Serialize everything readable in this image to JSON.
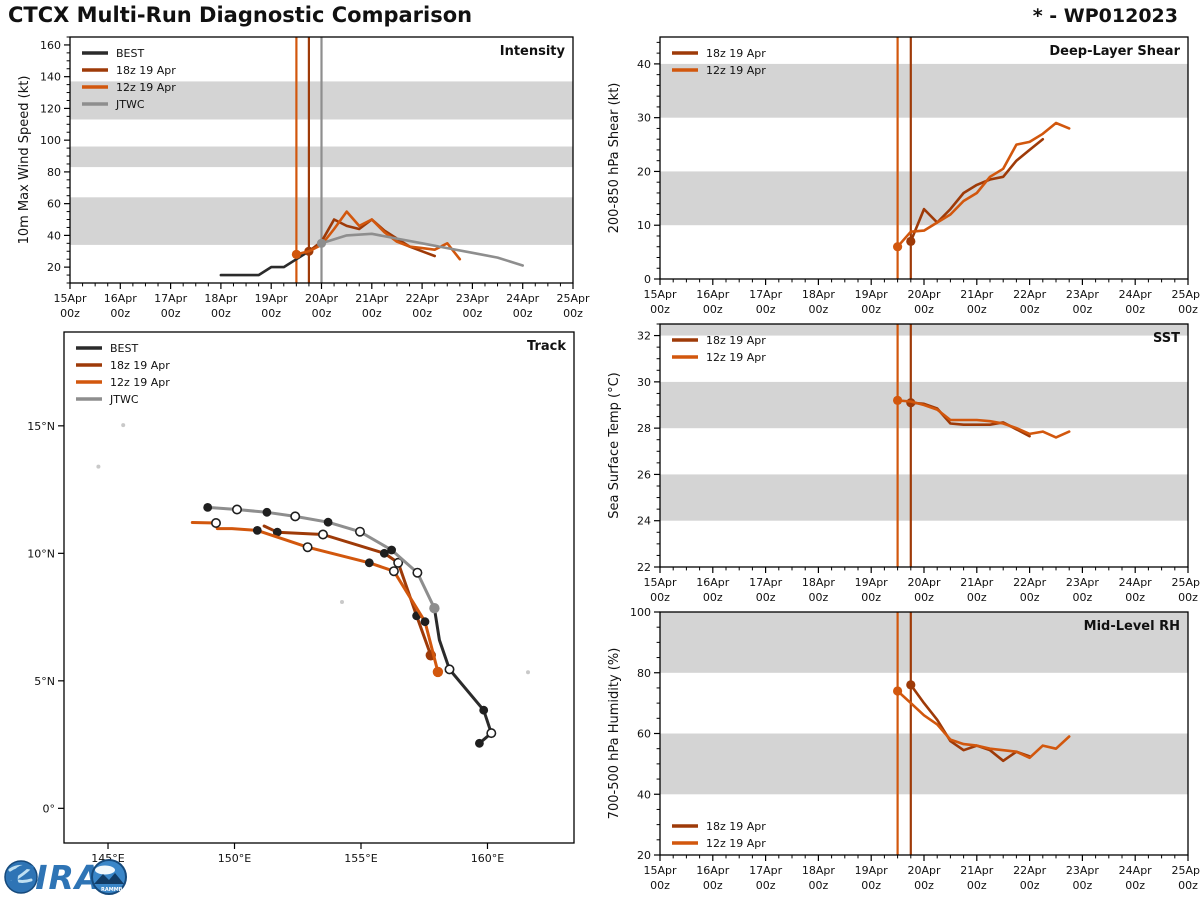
{
  "header": {
    "title": "CTCX Multi-Run Diagnostic Comparison",
    "storm_id": "* - WP012023"
  },
  "logo": {
    "cira": "CIRA",
    "rammb": "RAMMB"
  },
  "colors": {
    "best": "#2b2b2b",
    "run18": "#9e3a08",
    "run12": "#d2570d",
    "jtwc": "#8e8e8e",
    "band": "#d4d4d4",
    "marker": "#1f1f1f",
    "marker_open": "#ffffff",
    "axis": "#000000",
    "island": "#c9c9c9",
    "logo_blue": "#2e74b5",
    "logo_dark": "#164a7c"
  },
  "time_axis": {
    "ticks": [
      {
        "v": 15,
        "l1": "15Apr",
        "l2": "00z"
      },
      {
        "v": 16,
        "l1": "16Apr",
        "l2": "00z"
      },
      {
        "v": 17,
        "l1": "17Apr",
        "l2": "00z"
      },
      {
        "v": 18,
        "l1": "18Apr",
        "l2": "00z"
      },
      {
        "v": 19,
        "l1": "19Apr",
        "l2": "00z"
      },
      {
        "v": 20,
        "l1": "20Apr",
        "l2": "00z"
      },
      {
        "v": 21,
        "l1": "21Apr",
        "l2": "00z"
      },
      {
        "v": 22,
        "l1": "22Apr",
        "l2": "00z"
      },
      {
        "v": 23,
        "l1": "23Apr",
        "l2": "00z"
      },
      {
        "v": 24,
        "l1": "24Apr",
        "l2": "00z"
      },
      {
        "v": 25,
        "l1": "25Apr",
        "l2": "00z"
      }
    ]
  },
  "chart_data": [
    {
      "id": "intensity",
      "type": "line",
      "title": "Intensity",
      "ylabel": "10m Max Wind Speed (kt)",
      "xlim": [
        15,
        25
      ],
      "ylim": [
        10,
        165
      ],
      "xticks": "time",
      "xminor": 0.25,
      "yminor": 5,
      "yticks": [
        [
          20,
          "20"
        ],
        [
          40,
          "40"
        ],
        [
          60,
          "60"
        ],
        [
          80,
          "80"
        ],
        [
          100,
          "100"
        ],
        [
          120,
          "120"
        ],
        [
          140,
          "140"
        ],
        [
          160,
          "160"
        ]
      ],
      "bands": [
        [
          34,
          64
        ],
        [
          83,
          96
        ],
        [
          113,
          137
        ]
      ],
      "verticals": [
        {
          "x": 19.5,
          "color": "run12"
        },
        {
          "x": 19.75,
          "color": "run18"
        },
        {
          "x": 20,
          "color": "jtwc"
        }
      ],
      "legend": {
        "pos": "tl",
        "entries": [
          {
            "label": "BEST",
            "color": "best"
          },
          {
            "label": "18z 19 Apr",
            "color": "run18"
          },
          {
            "label": "12z 19 Apr",
            "color": "run12"
          },
          {
            "label": "JTWC",
            "color": "jtwc"
          }
        ]
      },
      "series": [
        {
          "name": "BEST",
          "color": "best",
          "x": [
            18,
            18.25,
            18.5,
            18.75,
            19,
            19.25,
            19.5,
            19.75,
            20
          ],
          "y": [
            15,
            15,
            15,
            15,
            20,
            20,
            25,
            30,
            35
          ]
        },
        {
          "name": "18z 19 Apr",
          "color": "run18",
          "dot": [
            19.75,
            30
          ],
          "x": [
            19.75,
            20,
            20.25,
            20.5,
            20.75,
            21,
            21.25,
            21.5,
            21.75,
            22,
            22.25
          ],
          "y": [
            30,
            36,
            50,
            46,
            44,
            50,
            43,
            38,
            33,
            30,
            27
          ]
        },
        {
          "name": "12z 19 Apr",
          "color": "run12",
          "dot": [
            19.5,
            28
          ],
          "x": [
            19.5,
            19.75,
            20,
            20.25,
            20.5,
            20.75,
            21,
            21.25,
            21.5,
            21.75,
            22,
            22.25,
            22.5,
            22.75
          ],
          "y": [
            28,
            30,
            34,
            44,
            55,
            46,
            50,
            42,
            36,
            33,
            32,
            31,
            35,
            25
          ]
        },
        {
          "name": "JTWC",
          "color": "jtwc",
          "dot": [
            20,
            35
          ],
          "x": [
            20,
            20.5,
            21,
            21.5,
            22,
            22.5,
            23,
            23.5,
            24
          ],
          "y": [
            35,
            40,
            41,
            38,
            35,
            32,
            29,
            26,
            21
          ]
        }
      ]
    },
    {
      "id": "shear",
      "type": "line",
      "title": "Deep-Layer Shear",
      "ylabel": "200-850 hPa Shear (kt)",
      "xlim": [
        15,
        25
      ],
      "ylim": [
        0,
        45
      ],
      "xticks": "time",
      "xminor": 0.25,
      "yminor": 2,
      "yticks": [
        [
          0,
          "0"
        ],
        [
          10,
          "10"
        ],
        [
          20,
          "20"
        ],
        [
          30,
          "30"
        ],
        [
          40,
          "40"
        ]
      ],
      "bands": [
        [
          10,
          20
        ],
        [
          30,
          40
        ]
      ],
      "verticals": [
        {
          "x": 19.5,
          "color": "run12"
        },
        {
          "x": 19.75,
          "color": "run18"
        }
      ],
      "legend": {
        "pos": "tl",
        "entries": [
          {
            "label": "18z 19 Apr",
            "color": "run18"
          },
          {
            "label": "12z 19 Apr",
            "color": "run12"
          }
        ]
      },
      "series": [
        {
          "name": "18z 19 Apr",
          "color": "run18",
          "dot": [
            19.75,
            7
          ],
          "x": [
            19.75,
            20,
            20.25,
            20.5,
            20.75,
            21,
            21.25,
            21.5,
            21.75,
            22,
            22.25
          ],
          "y": [
            7,
            13,
            10.5,
            13,
            16,
            17.5,
            18.5,
            19,
            22,
            24,
            26
          ]
        },
        {
          "name": "12z 19 Apr",
          "color": "run12",
          "dot": [
            19.5,
            6
          ],
          "x": [
            19.5,
            19.75,
            20,
            20.25,
            20.5,
            20.75,
            21,
            21.25,
            21.5,
            21.75,
            22,
            22.25,
            22.5,
            22.75
          ],
          "y": [
            6,
            8.8,
            9,
            10.5,
            12,
            14.5,
            16,
            19,
            20.5,
            25,
            25.5,
            27,
            29,
            28
          ]
        }
      ]
    },
    {
      "id": "track",
      "type": "line",
      "kind": "track",
      "title": "Track",
      "ylabel": "",
      "xlim": [
        143.26,
        163.42
      ],
      "ylim": [
        -1.36,
        18.68
      ],
      "xticks": [
        {
          "v": 145,
          "l1": "145°E"
        },
        {
          "v": 150,
          "l1": "150°E"
        },
        {
          "v": 155,
          "l1": "155°E"
        },
        {
          "v": 160,
          "l1": "160°E"
        }
      ],
      "yticks": [
        [
          0,
          "0°"
        ],
        [
          5,
          "5°N"
        ],
        [
          10,
          "10°N"
        ],
        [
          15,
          "15°N"
        ]
      ],
      "islands": [
        [
          145.6,
          15.03
        ],
        [
          144.62,
          13.4
        ],
        [
          154.25,
          8.09
        ],
        [
          161.6,
          5.34
        ]
      ],
      "legend": {
        "pos": "tl",
        "entries": [
          {
            "label": "BEST",
            "color": "best"
          },
          {
            "label": "18z 19 Apr",
            "color": "run18"
          },
          {
            "label": "12z 19 Apr",
            "color": "run12"
          },
          {
            "label": "JTWC",
            "color": "jtwc"
          }
        ]
      },
      "series": [
        {
          "name": "BEST",
          "color": "best",
          "width": 3,
          "pts": [
            [
              159.68,
              2.55,
              "f"
            ],
            [
              160.15,
              2.95,
              "o"
            ],
            [
              159.85,
              3.85,
              "f"
            ],
            [
              158.5,
              5.45,
              "o"
            ],
            [
              158.1,
              6.6,
              null
            ],
            [
              157.9,
              7.85,
              "f"
            ]
          ]
        },
        {
          "name": "18z 19 Apr",
          "color": "run18",
          "width": 3,
          "pts": [
            [
              157.76,
              6.0,
              "s"
            ],
            [
              157.2,
              7.55,
              "f"
            ],
            [
              156.47,
              9.63,
              "o"
            ],
            [
              155.92,
              10.0,
              "f"
            ],
            [
              153.5,
              10.74,
              "o"
            ],
            [
              151.69,
              10.83,
              "f"
            ],
            [
              151.17,
              11.07,
              null
            ]
          ]
        },
        {
          "name": "12z 19 Apr",
          "color": "run12",
          "width": 3,
          "pts": [
            [
              158.04,
              5.35,
              "s"
            ],
            [
              157.53,
              7.32,
              "f"
            ],
            [
              156.3,
              9.3,
              "o"
            ],
            [
              155.33,
              9.63,
              "f"
            ],
            [
              152.89,
              10.24,
              "o"
            ],
            [
              150.9,
              10.9,
              "f"
            ],
            [
              149.9,
              10.97,
              null
            ],
            [
              149.32,
              10.97,
              null
            ],
            [
              149.27,
              11.19,
              "o"
            ],
            [
              148.33,
              11.21,
              null
            ]
          ]
        },
        {
          "name": "JTWC",
          "color": "jtwc",
          "width": 3,
          "pts": [
            [
              157.9,
              7.85,
              "s"
            ],
            [
              157.23,
              9.24,
              "o"
            ],
            [
              156.21,
              10.13,
              "f"
            ],
            [
              154.96,
              10.85,
              "o"
            ],
            [
              153.7,
              11.22,
              "f"
            ],
            [
              152.4,
              11.45,
              "o"
            ],
            [
              151.28,
              11.61,
              "f"
            ],
            [
              150.1,
              11.72,
              "o"
            ],
            [
              148.94,
              11.8,
              "f"
            ]
          ]
        }
      ]
    },
    {
      "id": "sst",
      "type": "line",
      "title": "SST",
      "ylabel": "Sea Surface Temp (°C)",
      "xlim": [
        15,
        25
      ],
      "ylim": [
        22,
        32.5
      ],
      "xticks": "time",
      "xminor": 0.25,
      "yminor": 0.5,
      "yticks": [
        [
          22,
          "22"
        ],
        [
          24,
          "24"
        ],
        [
          26,
          "26"
        ],
        [
          28,
          "28"
        ],
        [
          30,
          "30"
        ],
        [
          32,
          "32"
        ]
      ],
      "bands": [
        [
          24,
          26
        ],
        [
          28,
          30
        ],
        [
          32,
          32.5
        ]
      ],
      "verticals": [
        {
          "x": 19.5,
          "color": "run12"
        },
        {
          "x": 19.75,
          "color": "run18"
        }
      ],
      "legend": {
        "pos": "tl",
        "entries": [
          {
            "label": "18z 19 Apr",
            "color": "run18"
          },
          {
            "label": "12z 19 Apr",
            "color": "run12"
          }
        ]
      },
      "series": [
        {
          "name": "18z 19 Apr",
          "color": "run18",
          "dot": [
            19.75,
            29.1
          ],
          "x": [
            19.75,
            20,
            20.25,
            20.5,
            20.75,
            21,
            21.25,
            21.5,
            21.75,
            22
          ],
          "y": [
            29.1,
            29.05,
            28.85,
            28.2,
            28.15,
            28.15,
            28.15,
            28.25,
            27.95,
            27.65
          ]
        },
        {
          "name": "12z 19 Apr",
          "color": "run12",
          "dot": [
            19.5,
            29.2
          ],
          "x": [
            19.5,
            19.75,
            20,
            20.25,
            20.5,
            20.75,
            21,
            21.25,
            21.5,
            21.75,
            22,
            22.25,
            22.5,
            22.75
          ],
          "y": [
            29.2,
            29.15,
            29.0,
            28.8,
            28.35,
            28.35,
            28.35,
            28.3,
            28.2,
            28.0,
            27.75,
            27.85,
            27.6,
            27.85
          ]
        }
      ]
    },
    {
      "id": "rh",
      "type": "line",
      "title": "Mid-Level RH",
      "ylabel": "700-500 hPa Humidity (%)",
      "xlim": [
        15,
        25
      ],
      "ylim": [
        20,
        100
      ],
      "xticks": "time",
      "xminor": 0.25,
      "yminor": 5,
      "yticks": [
        [
          20,
          "20"
        ],
        [
          40,
          "40"
        ],
        [
          60,
          "60"
        ],
        [
          80,
          "80"
        ],
        [
          100,
          "100"
        ]
      ],
      "bands": [
        [
          40,
          60
        ],
        [
          80,
          100
        ]
      ],
      "verticals": [
        {
          "x": 19.5,
          "color": "run12"
        },
        {
          "x": 19.75,
          "color": "run18"
        }
      ],
      "legend": {
        "pos": "bl",
        "entries": [
          {
            "label": "18z 19 Apr",
            "color": "run18"
          },
          {
            "label": "12z 19 Apr",
            "color": "run12"
          }
        ]
      },
      "series": [
        {
          "name": "18z 19 Apr",
          "color": "run18",
          "dot": [
            19.75,
            76
          ],
          "x": [
            19.75,
            20,
            20.25,
            20.5,
            20.75,
            21,
            21.25,
            21.5,
            21.75,
            22
          ],
          "y": [
            76,
            70,
            64.5,
            57.5,
            54.5,
            56,
            54.5,
            51,
            54,
            52.5
          ]
        },
        {
          "name": "12z 19 Apr",
          "color": "run12",
          "dot": [
            19.5,
            74
          ],
          "x": [
            19.5,
            19.75,
            20,
            20.25,
            20.5,
            20.75,
            21,
            21.25,
            21.5,
            21.75,
            22,
            22.25,
            22.5,
            22.75
          ],
          "y": [
            74,
            70,
            66,
            63,
            58,
            56.5,
            56,
            55,
            54.5,
            54,
            52,
            56,
            55,
            59
          ]
        }
      ]
    }
  ]
}
